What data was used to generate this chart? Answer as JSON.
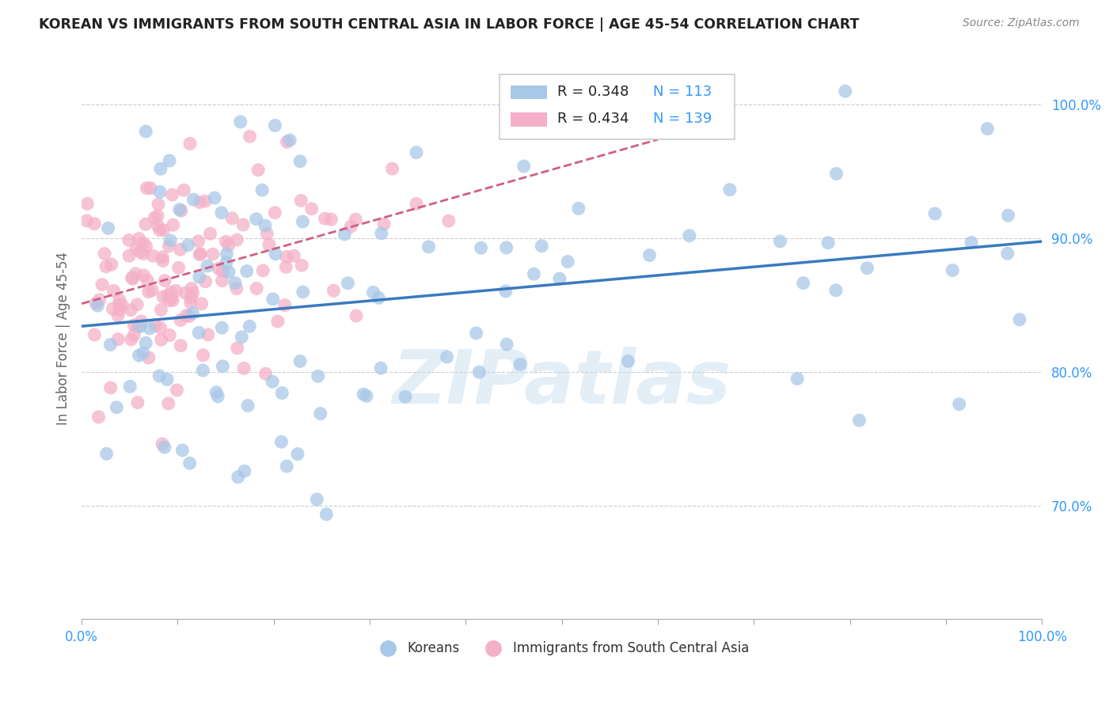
{
  "title": "KOREAN VS IMMIGRANTS FROM SOUTH CENTRAL ASIA IN LABOR FORCE | AGE 45-54 CORRELATION CHART",
  "source": "Source: ZipAtlas.com",
  "ylabel": "In Labor Force | Age 45-54",
  "xlim": [
    0.0,
    1.0
  ],
  "ylim": [
    0.615,
    1.035
  ],
  "x_ticks": [
    0.0,
    0.1,
    0.2,
    0.3,
    0.4,
    0.5,
    0.6,
    0.7,
    0.8,
    0.9,
    1.0
  ],
  "x_tick_labels": [
    "0.0%",
    "",
    "",
    "",
    "",
    "",
    "",
    "",
    "",
    "",
    "100.0%"
  ],
  "y_ticks": [
    0.7,
    0.8,
    0.9,
    1.0
  ],
  "y_tick_labels": [
    "70.0%",
    "80.0%",
    "90.0%",
    "100.0%"
  ],
  "korean_R": 0.348,
  "korean_N": 113,
  "immigrant_R": 0.434,
  "immigrant_N": 139,
  "korean_color": "#a8c8e8",
  "korean_line_color": "#3a7abf",
  "immigrant_color": "#f4b0c8",
  "immigrant_line_color": "#d06080",
  "watermark_text": "ZIPatlas",
  "legend_korean": "Koreans",
  "legend_immigrant": "Immigrants from South Central Asia",
  "background_color": "#ffffff"
}
